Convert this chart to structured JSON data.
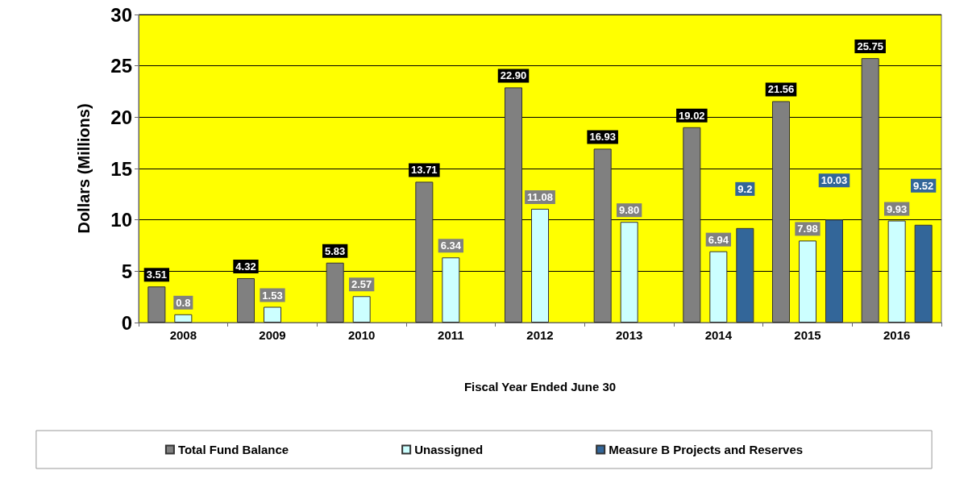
{
  "chart_data": {
    "type": "bar",
    "xlabel": "Fiscal Year Ended June 30",
    "ylabel": "Dollars (Millions)",
    "categories": [
      "2008",
      "2009",
      "2010",
      "2011",
      "2012",
      "2013",
      "2014",
      "2015",
      "2016"
    ],
    "series": [
      {
        "name": "Total Fund Balance",
        "color": "#808080",
        "values": [
          3.51,
          4.32,
          5.83,
          13.71,
          22.9,
          16.93,
          19.02,
          21.56,
          25.75
        ],
        "value_labels": [
          "3.51",
          "4.32",
          "5.83",
          "13.71",
          "22.90",
          "16.93",
          "19.02",
          "21.56",
          "25.75"
        ]
      },
      {
        "name": "Unassigned",
        "color": "#ccffff",
        "values": [
          0.8,
          1.53,
          2.57,
          6.34,
          11.08,
          9.8,
          6.94,
          7.98,
          9.93
        ],
        "value_labels": [
          "0.8",
          "1.53",
          "2.57",
          "6.34",
          "11.08",
          "9.80",
          "6.94",
          "7.98",
          "9.93"
        ]
      },
      {
        "name": "Measure B Projects and Reserves",
        "color": "#336699",
        "values": [
          null,
          null,
          null,
          null,
          null,
          null,
          9.2,
          10.03,
          9.52
        ],
        "value_labels": [
          null,
          null,
          null,
          null,
          null,
          null,
          "9.2",
          "10.03",
          "9.52"
        ]
      }
    ],
    "ylim": [
      0,
      30
    ],
    "yticks": [
      0,
      5,
      10,
      15,
      20,
      25,
      30
    ],
    "grid": "y",
    "legend": "bottom"
  }
}
